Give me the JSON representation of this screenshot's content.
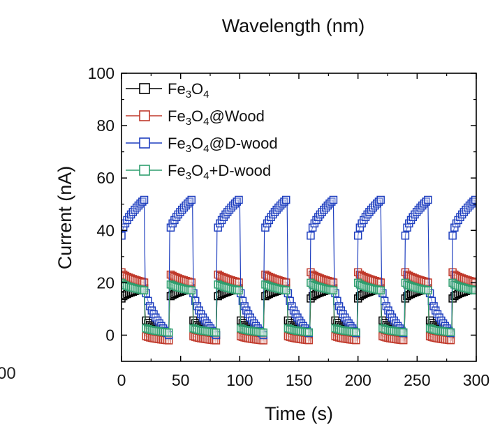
{
  "top_fragment": {
    "xlabel": "Wavelength (nm)",
    "left_tick": "00"
  },
  "chart_data": {
    "type": "scatter",
    "title": "",
    "xlabel": "Time (s)",
    "ylabel": "Current (nA)",
    "xlim": [
      0,
      300
    ],
    "ylim": [
      -10,
      100
    ],
    "xticks": [
      "0",
      "50",
      "100",
      "150",
      "200",
      "250",
      "300"
    ],
    "yticks": [
      "0",
      "20",
      "40",
      "60",
      "80",
      "100"
    ],
    "grid": false,
    "legend_position": "top-left",
    "marker": "open-square",
    "light_on_off": {
      "period_s": 40,
      "on_s": 20
    },
    "series": [
      {
        "name_parts": [
          "Fe",
          "3",
          "O",
          "4",
          ""
        ],
        "color": "#000000",
        "on_start": 14,
        "on_end": 18,
        "off_start": 7,
        "off_end": 0
      },
      {
        "name_parts": [
          "Fe",
          "3",
          "O",
          "4",
          "@Wood"
        ],
        "color": "#c0392b",
        "on_start": 24,
        "on_end": 20,
        "off_start": 0,
        "off_end": -2
      },
      {
        "name_parts": [
          "Fe",
          "3",
          "O",
          "4",
          "@D-wood"
        ],
        "color": "#1f3fbf",
        "on_start": 38,
        "on_end": 52,
        "off_start": 20,
        "off_end": 0
      },
      {
        "name_parts": [
          "Fe",
          "3",
          "O",
          "4",
          "+D-wood"
        ],
        "color": "#2e9e6e",
        "on_start": 20,
        "on_end": 17,
        "off_start": 3,
        "off_end": 1
      }
    ]
  }
}
